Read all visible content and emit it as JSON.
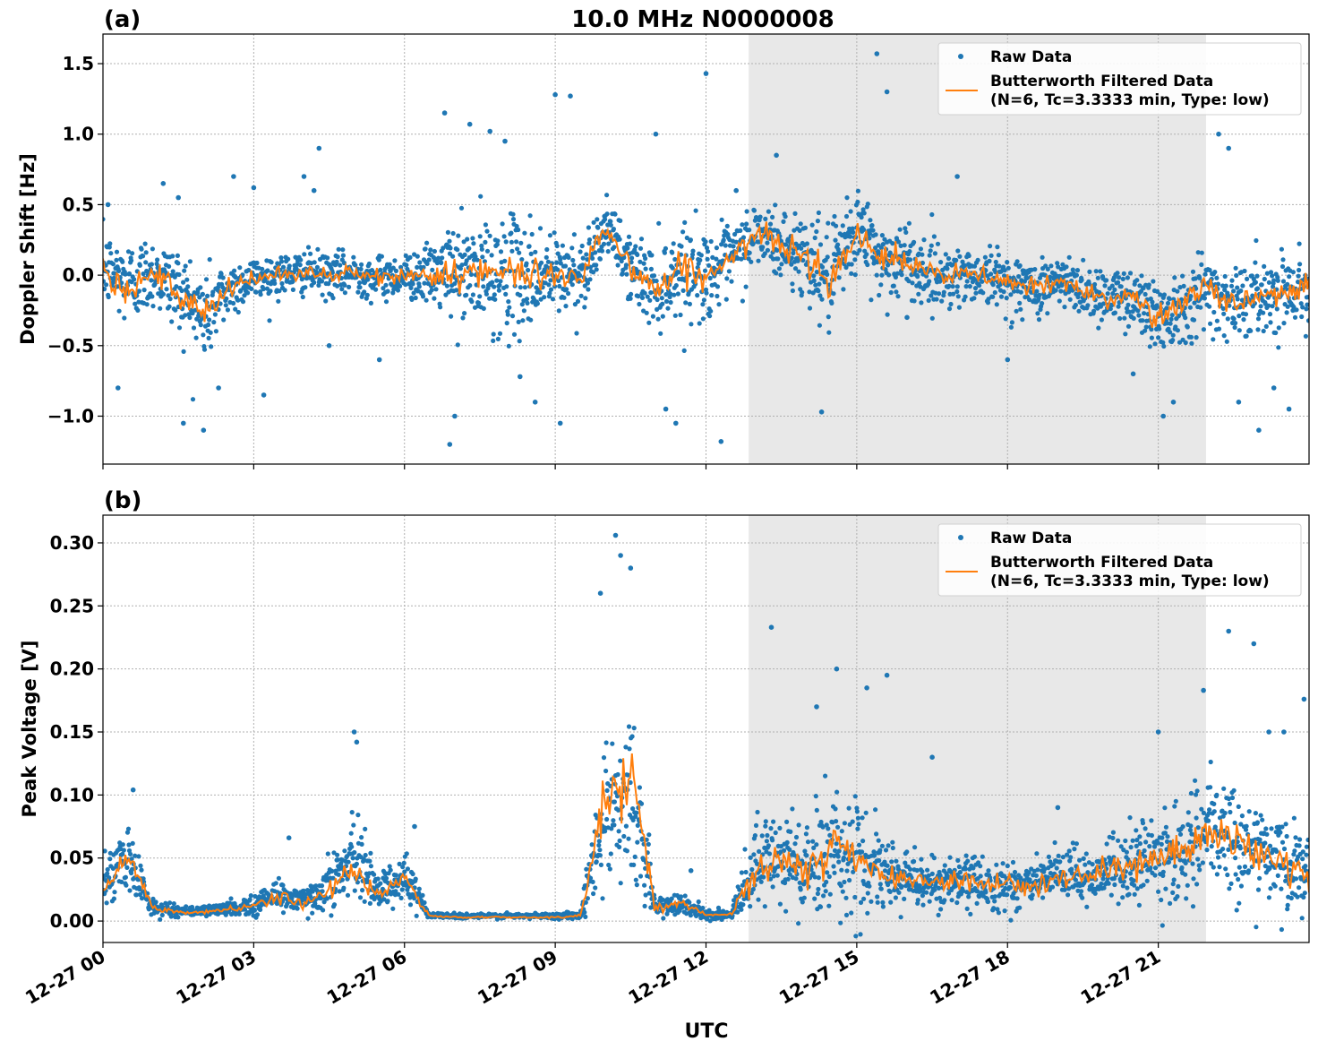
{
  "figure": {
    "title": "10.0 MHz N0000008",
    "xlabel": "UTC"
  },
  "colors": {
    "raw": "#1f77b4",
    "filtered": "#ff7f0e",
    "shade": "#e8e8e8",
    "grid": "#b0b0b0"
  },
  "chart_data": [
    {
      "type": "scatter",
      "panel_label": "(a)",
      "ylabel": "Doppler Shift [Hz]",
      "xlim_hours": [
        0,
        24
      ],
      "ylim": [
        -1.34,
        1.71
      ],
      "yticks": [
        1.5,
        1.0,
        0.5,
        0.0,
        -0.5,
        -1.0
      ],
      "ytick_labels": [
        "1.5",
        "1.0",
        "0.5",
        "0.0",
        "−1.0"
      ],
      "ytick_labels_full": [
        "1.5",
        "1.0",
        "0.5",
        "0.0",
        "−0.5",
        "−1.0"
      ],
      "grid": true,
      "shaded_region_hours": [
        12.85,
        21.95
      ],
      "legend": {
        "placement": "top-right",
        "entries": [
          "Raw Data",
          "Butterworth Filtered Data\n(N=6, Tc=3.3333 min, Type: low)"
        ]
      },
      "series": [
        {
          "name": "Raw Data",
          "style": "points",
          "x_hours": [
            0,
            0.5,
            1,
            1.5,
            2,
            2.5,
            3,
            3.5,
            4,
            4.5,
            5,
            5.5,
            6,
            6.5,
            7,
            7.5,
            8,
            8.5,
            9,
            9.5,
            10,
            10.5,
            11,
            11.5,
            12,
            12.5,
            13,
            13.5,
            14,
            14.5,
            15,
            15.5,
            16,
            16.5,
            17,
            17.5,
            18,
            18.5,
            19,
            19.5,
            20,
            20.5,
            21,
            21.5,
            22,
            22.5,
            23,
            23.5,
            24
          ],
          "center": [
            0.05,
            -0.05,
            0.02,
            -0.1,
            -0.3,
            -0.1,
            -0.02,
            0.0,
            0.02,
            0.0,
            0.01,
            -0.02,
            0.0,
            0.0,
            0.02,
            0.0,
            0.0,
            0.0,
            0.0,
            0.0,
            0.35,
            0.05,
            -0.1,
            0.05,
            0.0,
            0.1,
            0.3,
            0.2,
            0.15,
            -0.05,
            0.35,
            0.1,
            0.1,
            0.0,
            0.0,
            0.0,
            -0.05,
            -0.1,
            -0.05,
            -0.1,
            -0.15,
            -0.15,
            -0.3,
            -0.2,
            -0.1,
            -0.2,
            -0.15,
            -0.1,
            -0.1
          ],
          "spread": [
            0.25,
            0.3,
            0.25,
            0.3,
            0.35,
            0.2,
            0.15,
            0.15,
            0.15,
            0.15,
            0.15,
            0.15,
            0.15,
            0.2,
            0.35,
            0.4,
            0.4,
            0.4,
            0.3,
            0.3,
            0.15,
            0.25,
            0.3,
            0.3,
            0.3,
            0.25,
            0.25,
            0.25,
            0.3,
            0.35,
            0.3,
            0.3,
            0.25,
            0.25,
            0.2,
            0.2,
            0.2,
            0.2,
            0.2,
            0.2,
            0.2,
            0.2,
            0.3,
            0.25,
            0.3,
            0.25,
            0.25,
            0.25,
            0.25
          ],
          "outliers": [
            [
              0.1,
              0.5
            ],
            [
              0.3,
              -0.8
            ],
            [
              1.2,
              0.65
            ],
            [
              1.5,
              0.55
            ],
            [
              1.6,
              -1.05
            ],
            [
              2.0,
              -1.1
            ],
            [
              2.3,
              -0.8
            ],
            [
              2.6,
              0.7
            ],
            [
              3.0,
              0.62
            ],
            [
              3.2,
              -0.85
            ],
            [
              4.0,
              0.7
            ],
            [
              4.2,
              0.6
            ],
            [
              4.3,
              0.9
            ],
            [
              4.5,
              -0.5
            ],
            [
              5.5,
              -0.6
            ],
            [
              6.8,
              1.15
            ],
            [
              6.9,
              -1.2
            ],
            [
              7.0,
              -1.0
            ],
            [
              7.3,
              1.07
            ],
            [
              7.7,
              1.02
            ],
            [
              8.0,
              0.95
            ],
            [
              8.3,
              -0.72
            ],
            [
              8.6,
              -0.9
            ],
            [
              9.0,
              1.28
            ],
            [
              9.1,
              -1.05
            ],
            [
              9.3,
              1.27
            ],
            [
              11.0,
              1.0
            ],
            [
              11.2,
              -0.95
            ],
            [
              11.4,
              -1.05
            ],
            [
              12.0,
              1.43
            ],
            [
              12.3,
              -1.18
            ],
            [
              12.6,
              0.6
            ],
            [
              13.4,
              0.85
            ],
            [
              14.3,
              -0.97
            ],
            [
              15.4,
              1.57
            ],
            [
              15.6,
              1.3
            ],
            [
              16.0,
              -0.3
            ],
            [
              17.0,
              0.7
            ],
            [
              18.0,
              -0.6
            ],
            [
              20.5,
              -0.7
            ],
            [
              21.1,
              -1.0
            ],
            [
              21.3,
              -0.9
            ],
            [
              22.2,
              1.0
            ],
            [
              22.4,
              0.9
            ],
            [
              22.6,
              -0.9
            ],
            [
              23.0,
              -1.1
            ],
            [
              23.3,
              -0.8
            ],
            [
              23.6,
              -0.95
            ]
          ]
        },
        {
          "name": "Butterworth Filtered Data\n(N=6, Tc=3.3333 min, Type: low)",
          "style": "line",
          "x_hours": [
            0,
            0.5,
            1,
            1.5,
            2,
            2.5,
            3,
            3.5,
            4,
            4.5,
            5,
            5.5,
            6,
            6.5,
            7,
            7.5,
            8,
            8.5,
            9,
            9.5,
            10,
            10.5,
            11,
            11.5,
            12,
            12.5,
            13,
            13.5,
            14,
            14.5,
            15,
            15.5,
            16,
            16.5,
            17,
            17.5,
            18,
            18.5,
            19,
            19.5,
            20,
            20.5,
            21,
            21.5,
            22,
            22.5,
            23,
            23.5,
            24
          ],
          "y": [
            0.05,
            -0.1,
            0.02,
            -0.15,
            -0.3,
            -0.1,
            -0.02,
            0.0,
            0.02,
            0.0,
            0.01,
            -0.02,
            0.0,
            0.0,
            0.02,
            0.0,
            0.0,
            0.0,
            0.0,
            0.0,
            0.35,
            0.05,
            -0.1,
            0.05,
            0.0,
            0.1,
            0.3,
            0.2,
            0.15,
            -0.05,
            0.35,
            0.1,
            0.1,
            0.0,
            0.0,
            0.0,
            -0.05,
            -0.1,
            -0.05,
            -0.1,
            -0.15,
            -0.15,
            -0.3,
            -0.2,
            -0.1,
            -0.2,
            -0.15,
            -0.1,
            -0.1
          ]
        }
      ]
    },
    {
      "type": "scatter",
      "panel_label": "(b)",
      "ylabel": "Peak Voltage [V]",
      "xlim_hours": [
        0,
        24
      ],
      "ylim": [
        -0.017,
        0.322
      ],
      "yticks": [
        0.3,
        0.25,
        0.2,
        0.15,
        0.1,
        0.05,
        0.0
      ],
      "ytick_labels": [
        "0.30",
        "0.25",
        "0.20",
        "0.15",
        "0.10",
        "0.05",
        "0.00"
      ],
      "grid": true,
      "shaded_region_hours": [
        12.85,
        21.95
      ],
      "legend": {
        "placement": "top-right",
        "entries": [
          "Raw Data",
          "Butterworth Filtered Data\n(N=6, Tc=3.3333 min, Type: low)"
        ]
      },
      "series": [
        {
          "name": "Raw Data",
          "style": "points",
          "x_hours": [
            0,
            0.5,
            1,
            1.5,
            2,
            2.5,
            3,
            3.5,
            4,
            4.5,
            5,
            5.5,
            6,
            6.5,
            7,
            7.5,
            8,
            8.5,
            9,
            9.5,
            10,
            10.5,
            11,
            11.5,
            12,
            12.5,
            13,
            13.5,
            14,
            14.5,
            15,
            15.5,
            16,
            16.5,
            17,
            17.5,
            18,
            18.5,
            19,
            19.5,
            20,
            20.5,
            21,
            21.5,
            22,
            22.5,
            23,
            23.5,
            24
          ],
          "center": [
            0.03,
            0.05,
            0.01,
            0.008,
            0.008,
            0.01,
            0.012,
            0.022,
            0.015,
            0.03,
            0.05,
            0.025,
            0.035,
            0.005,
            0.004,
            0.004,
            0.004,
            0.004,
            0.004,
            0.005,
            0.09,
            0.1,
            0.01,
            0.015,
            0.005,
            0.005,
            0.04,
            0.05,
            0.04,
            0.06,
            0.05,
            0.035,
            0.035,
            0.03,
            0.03,
            0.03,
            0.028,
            0.03,
            0.035,
            0.035,
            0.04,
            0.045,
            0.05,
            0.055,
            0.07,
            0.065,
            0.055,
            0.045,
            0.035
          ],
          "spread": [
            0.02,
            0.025,
            0.006,
            0.004,
            0.004,
            0.005,
            0.008,
            0.015,
            0.01,
            0.02,
            0.03,
            0.015,
            0.02,
            0.002,
            0.002,
            0.002,
            0.002,
            0.002,
            0.002,
            0.003,
            0.06,
            0.07,
            0.01,
            0.01,
            0.003,
            0.003,
            0.04,
            0.045,
            0.04,
            0.05,
            0.04,
            0.03,
            0.025,
            0.02,
            0.02,
            0.02,
            0.02,
            0.02,
            0.022,
            0.022,
            0.025,
            0.03,
            0.035,
            0.035,
            0.04,
            0.04,
            0.035,
            0.035,
            0.03
          ],
          "outliers": [
            [
              0.6,
              0.104
            ],
            [
              3.7,
              0.066
            ],
            [
              5.0,
              0.15
            ],
            [
              5.05,
              0.142
            ],
            [
              6.2,
              0.075
            ],
            [
              9.9,
              0.26
            ],
            [
              10.2,
              0.306
            ],
            [
              10.3,
              0.29
            ],
            [
              10.5,
              0.28
            ],
            [
              11.7,
              0.04
            ],
            [
              13.3,
              0.233
            ],
            [
              14.2,
              0.17
            ],
            [
              14.6,
              0.2
            ],
            [
              15.2,
              0.185
            ],
            [
              15.6,
              0.195
            ],
            [
              16.5,
              0.13
            ],
            [
              19.0,
              0.09
            ],
            [
              21.0,
              0.15
            ],
            [
              21.9,
              0.183
            ],
            [
              22.4,
              0.23
            ],
            [
              22.9,
              0.22
            ],
            [
              23.2,
              0.15
            ],
            [
              23.5,
              0.15
            ],
            [
              23.9,
              0.176
            ]
          ]
        },
        {
          "name": "Butterworth Filtered Data\n(N=6, Tc=3.3333 min, Type: low)",
          "style": "line",
          "x_hours": [
            0,
            0.5,
            1,
            1.5,
            2,
            2.5,
            3,
            3.5,
            4,
            4.5,
            5,
            5.5,
            6,
            6.5,
            7,
            7.5,
            8,
            8.5,
            9,
            9.5,
            10,
            10.5,
            11,
            11.5,
            12,
            12.5,
            13,
            13.5,
            14,
            14.5,
            15,
            15.5,
            16,
            16.5,
            17,
            17.5,
            18,
            18.5,
            19,
            19.5,
            20,
            20.5,
            21,
            21.5,
            22,
            22.5,
            23,
            23.5,
            24
          ],
          "y": [
            0.025,
            0.05,
            0.01,
            0.007,
            0.007,
            0.009,
            0.012,
            0.02,
            0.013,
            0.025,
            0.04,
            0.02,
            0.035,
            0.004,
            0.003,
            0.003,
            0.003,
            0.003,
            0.003,
            0.004,
            0.1,
            0.12,
            0.01,
            0.015,
            0.005,
            0.005,
            0.04,
            0.05,
            0.04,
            0.06,
            0.05,
            0.035,
            0.035,
            0.03,
            0.03,
            0.03,
            0.028,
            0.03,
            0.035,
            0.035,
            0.04,
            0.045,
            0.05,
            0.055,
            0.07,
            0.065,
            0.055,
            0.045,
            0.035
          ]
        }
      ]
    }
  ],
  "xaxis": {
    "tick_hours": [
      0,
      3,
      6,
      9,
      12,
      15,
      18,
      21
    ],
    "tick_labels": [
      "12-27 00",
      "12-27 03",
      "12-27 06",
      "12-27 09",
      "12-27 12",
      "12-27 15",
      "12-27 18",
      "12-27 21"
    ]
  }
}
